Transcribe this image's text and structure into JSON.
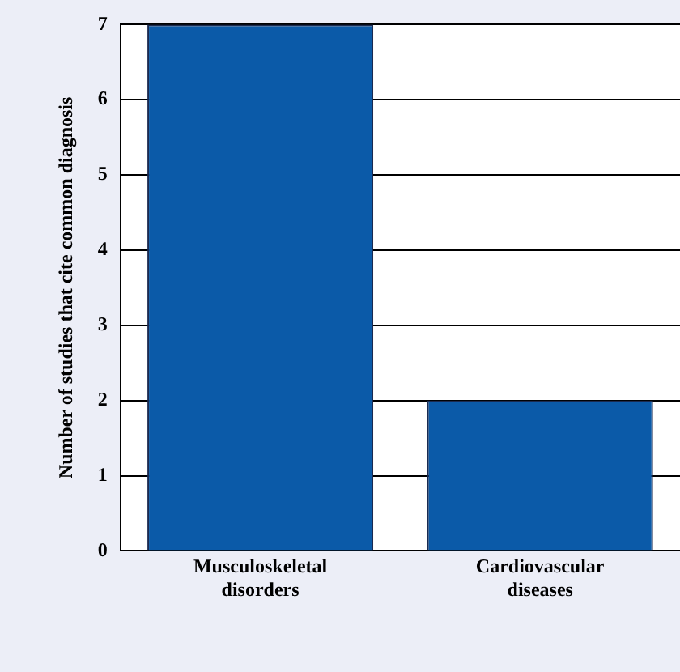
{
  "chart_data": {
    "type": "bar",
    "ylabel": "Number of studies that cite common diagnosis",
    "categories": [
      "Musculoskeletal disorders",
      "Cardiovascular diseases"
    ],
    "values": [
      7,
      2
    ],
    "color": "#0b5aa8",
    "ylim": [
      0,
      7
    ],
    "yticks": [
      0,
      1,
      2,
      3,
      4,
      5,
      6,
      7
    ],
    "grid": "y",
    "legend": false
  }
}
